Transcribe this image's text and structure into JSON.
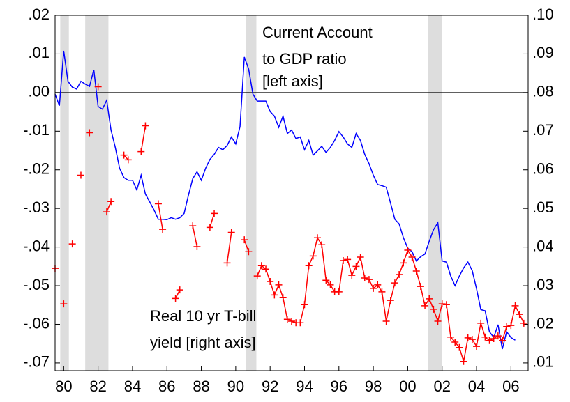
{
  "chart_data": {
    "type": "line",
    "annotations": [
      [
        "Current Account",
        "to GDP ratio",
        "[left axis]"
      ],
      [
        "Real 10 yr T-bill",
        "yield [right axis]"
      ]
    ],
    "x": [
      1979.5,
      1979.75,
      1980,
      1980.25,
      1980.5,
      1980.75,
      1981,
      1981.25,
      1981.5,
      1981.75,
      1982,
      1982.25,
      1982.5,
      1982.75,
      1983,
      1983.25,
      1983.5,
      1983.75,
      1984,
      1984.25,
      1984.5,
      1984.75,
      1985,
      1985.25,
      1985.5,
      1985.75,
      1986,
      1986.25,
      1986.5,
      1986.75,
      1987,
      1987.25,
      1987.5,
      1987.75,
      1988,
      1988.25,
      1988.5,
      1988.75,
      1989,
      1989.25,
      1989.5,
      1989.75,
      1990,
      1990.25,
      1990.5,
      1990.75,
      1991,
      1991.25,
      1991.5,
      1991.75,
      1992,
      1992.25,
      1992.5,
      1992.75,
      1993,
      1993.25,
      1993.5,
      1993.75,
      1994,
      1994.25,
      1994.5,
      1994.75,
      1995,
      1995.25,
      1995.5,
      1995.75,
      1996,
      1996.25,
      1996.5,
      1996.75,
      1997,
      1997.25,
      1997.5,
      1997.75,
      1998,
      1998.25,
      1998.5,
      1998.75,
      1999,
      1999.25,
      1999.5,
      1999.75,
      2000,
      2000.25,
      2000.5,
      2000.75,
      2001,
      2001.25,
      2001.5,
      2001.75,
      2002,
      2002.25,
      2002.5,
      2002.75,
      2003,
      2003.25,
      2003.5,
      2003.75,
      2004,
      2004.25,
      2004.5,
      2004.75,
      2005,
      2005.25,
      2005.5,
      2005.75,
      2006,
      2006.25,
      2006.5,
      2006.75
    ],
    "series": [
      {
        "color": "#0000ff",
        "values": [
          -0.0004,
          -0.0034,
          0.0108,
          0.0029,
          0.0014,
          0.0009,
          0.0029,
          0.0022,
          0.0016,
          0.0059,
          -0.0036,
          -0.0043,
          -0.002,
          -0.0097,
          -0.0142,
          -0.0196,
          -0.022,
          -0.0227,
          -0.0227,
          -0.0252,
          -0.0214,
          -0.0263,
          -0.0283,
          -0.0304,
          -0.0328,
          -0.0328,
          -0.0329,
          -0.0324,
          -0.0328,
          -0.0324,
          -0.0313,
          -0.0266,
          -0.0223,
          -0.0205,
          -0.0227,
          -0.0196,
          -0.0173,
          -0.016,
          -0.0142,
          -0.0148,
          -0.0137,
          -0.0115,
          -0.0133,
          -0.0088,
          0.0092,
          0.0061,
          -0.0004,
          -0.0022,
          -0.0022,
          -0.0022,
          -0.0049,
          -0.0061,
          -0.009,
          -0.0061,
          -0.0106,
          -0.0097,
          -0.0119,
          -0.0115,
          -0.0148,
          -0.0124,
          -0.0162,
          -0.0151,
          -0.0139,
          -0.0155,
          -0.0142,
          -0.0124,
          -0.0101,
          -0.0115,
          -0.0133,
          -0.0142,
          -0.0106,
          -0.0124,
          -0.016,
          -0.0184,
          -0.0214,
          -0.0238,
          -0.0241,
          -0.0245,
          -0.0286,
          -0.0328,
          -0.034,
          -0.0376,
          -0.0403,
          -0.0412,
          -0.0436,
          -0.0425,
          -0.0418,
          -0.0385,
          -0.0355,
          -0.0337,
          -0.0436,
          -0.0439,
          -0.0475,
          -0.05,
          -0.0475,
          -0.0454,
          -0.0439,
          -0.0461,
          -0.0508,
          -0.0562,
          -0.0565,
          -0.0619,
          -0.0634,
          -0.0601,
          -0.0664,
          -0.0619,
          -0.0634,
          -0.0641,
          null,
          null
        ]
      },
      {
        "color": "#ff0000",
        "axis": "y2",
        "marker": "plus",
        "values": [
          0.0345,
          null,
          0.0253,
          null,
          0.0408,
          null,
          0.0586,
          null,
          0.0696,
          null,
          0.0815,
          null,
          0.0491,
          0.0518,
          null,
          null,
          0.0638,
          0.0626,
          null,
          null,
          0.0647,
          0.0714,
          null,
          null,
          0.0512,
          0.0446,
          null,
          null,
          0.0267,
          0.0289,
          null,
          null,
          0.0455,
          0.0401,
          null,
          null,
          0.0451,
          0.0487,
          null,
          null,
          0.0359,
          0.0438,
          null,
          null,
          0.0419,
          0.0388,
          null,
          0.0325,
          0.0352,
          0.0343,
          0.0311,
          0.0276,
          0.0302,
          0.0269,
          0.0213,
          0.0208,
          0.0204,
          0.0204,
          0.0251,
          0.0352,
          0.0377,
          0.0424,
          0.0406,
          0.0314,
          0.0302,
          0.0284,
          0.0284,
          0.0365,
          0.0368,
          0.0327,
          0.035,
          0.0374,
          0.032,
          0.0316,
          0.0293,
          0.0302,
          0.0284,
          0.0208,
          0.0262,
          0.0307,
          0.0329,
          0.0359,
          0.0392,
          0.0374,
          0.0338,
          0.0298,
          0.0248,
          0.0266,
          0.0239,
          0.0208,
          0.0253,
          0.0251,
          0.0167,
          0.0154,
          0.014,
          0.0104,
          0.0165,
          0.0161,
          0.0143,
          0.0203,
          0.0167,
          0.0158,
          0.0163,
          0.017,
          0.0158,
          0.0194,
          0.0197,
          0.0248,
          0.0226,
          0.0203
        ]
      }
    ],
    "xlim": [
      1979.5,
      2007
    ],
    "xticks": [
      {
        "value": 1980,
        "label": "80"
      },
      {
        "value": 1982,
        "label": "82"
      },
      {
        "value": 1984,
        "label": "84"
      },
      {
        "value": 1986,
        "label": "86"
      },
      {
        "value": 1988,
        "label": "88"
      },
      {
        "value": 1990,
        "label": "90"
      },
      {
        "value": 1992,
        "label": "92"
      },
      {
        "value": 1994,
        "label": "94"
      },
      {
        "value": 1996,
        "label": "96"
      },
      {
        "value": 1998,
        "label": "98"
      },
      {
        "value": 2000,
        "label": "00"
      },
      {
        "value": 2002,
        "label": "02"
      },
      {
        "value": 2004,
        "label": "04"
      },
      {
        "value": 2006,
        "label": "06"
      }
    ],
    "ylim": [
      -0.072,
      0.02
    ],
    "yticks": [
      {
        "value": 0.02,
        "label": ".02"
      },
      {
        "value": 0.01,
        "label": ".01"
      },
      {
        "value": 0,
        "label": ".00"
      },
      {
        "value": -0.01,
        "label": "-.01"
      },
      {
        "value": -0.02,
        "label": "-.02"
      },
      {
        "value": -0.03,
        "label": "-.03"
      },
      {
        "value": -0.04,
        "label": "-.04"
      },
      {
        "value": -0.05,
        "label": "-.05"
      },
      {
        "value": -0.06,
        "label": "-.06"
      },
      {
        "value": -0.07,
        "label": "-.07"
      }
    ],
    "y2lim": [
      0.008,
      0.1
    ],
    "y2ticks": [
      {
        "value": 0.1,
        "label": ".10"
      },
      {
        "value": 0.09,
        "label": ".09"
      },
      {
        "value": 0.08,
        "label": ".08"
      },
      {
        "value": 0.07,
        "label": ".07"
      },
      {
        "value": 0.06,
        "label": ".06"
      },
      {
        "value": 0.05,
        "label": ".05"
      },
      {
        "value": 0.04,
        "label": ".04"
      },
      {
        "value": 0.03,
        "label": ".03"
      },
      {
        "value": 0.02,
        "label": ".02"
      },
      {
        "value": 0.01,
        "label": ".01"
      }
    ],
    "reference_line": 0,
    "shading": [
      [
        1979.8,
        1980.3
      ],
      [
        1981.25,
        1982.6
      ],
      [
        1990.6,
        1991.2
      ],
      [
        2001.2,
        2002.0
      ]
    ],
    "shading_color": "#dddddd"
  }
}
